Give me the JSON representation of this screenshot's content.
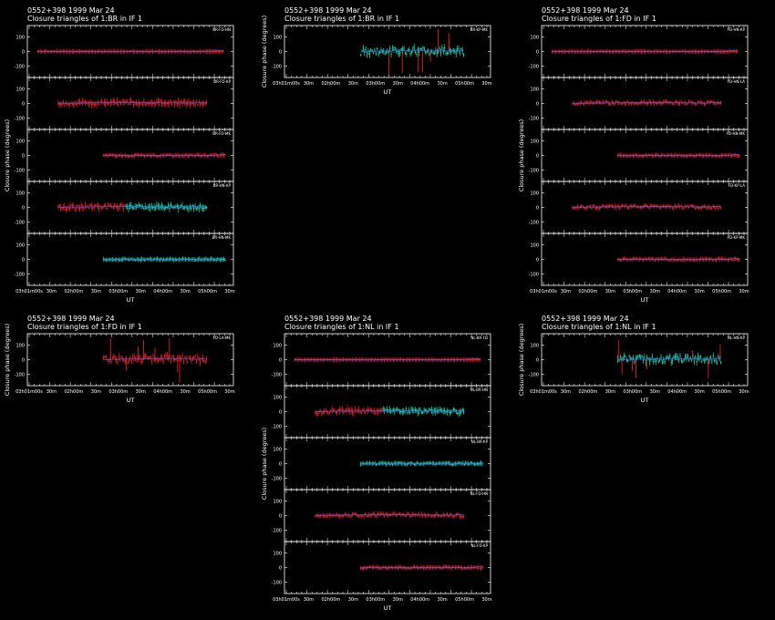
{
  "source": "0552+398",
  "date": "1999 Mar 24",
  "title_prefix": "Closure triangles of",
  "if_label": "in IF 1",
  "ylabel": "Closure phase  (degrees)",
  "xlabel": "UT",
  "x_tick_labels": [
    "03h01m00s",
    "30m",
    "02h00m",
    "30m",
    "03h00m",
    "30m",
    "04h00m",
    "30m",
    "05h00m",
    "30m"
  ],
  "y_tick_labels": [
    "100",
    "0",
    "-100"
  ],
  "colors": {
    "primary": "#ff2020",
    "secondary": "#20e0c0",
    "model": "#3070ff",
    "axes": "#ffffff"
  },
  "chart_data": [
    {
      "type": "scatter",
      "id": "p1",
      "ref_antenna": "1:BR",
      "title": "0552+398  1999 Mar 24",
      "subtitle": "Closure triangles of 1:BR in IF 1",
      "ylabel": "Closure phase  (degrees)",
      "xlabel": "UT",
      "ylim": [
        -180,
        180
      ],
      "xlim": [
        0,
        1
      ],
      "show_title": false,
      "triangles": [
        {
          "label": "BR-FD-HN",
          "x_start": 0.05,
          "x_end": 0.95,
          "y": 0,
          "scatter": 2,
          "color": "primary"
        },
        {
          "label": "BR-FD-KP",
          "x_start": 0.15,
          "x_end": 0.87,
          "y": 0,
          "scatter": 12,
          "color": "primary"
        },
        {
          "label": "BR-FD-MK",
          "x_start": 0.37,
          "x_end": 0.96,
          "y": 0,
          "scatter": 6,
          "color": "primary"
        },
        {
          "label": "BR-HN-KP",
          "x_start": 0.15,
          "x_end": 0.87,
          "y": 0,
          "scatter": 14,
          "color": "mixed"
        },
        {
          "label": "BR-HN-MK",
          "x_start": 0.37,
          "x_end": 0.96,
          "y": 0,
          "scatter": 5,
          "color": "secondary"
        }
      ]
    },
    {
      "type": "scatter",
      "id": "p2",
      "ref_antenna": "1:BR",
      "title": "0552+398  1999 Mar 24",
      "subtitle": "Closure triangles of 1:BR in IF 1",
      "ylabel": "Closure phase  (degrees)",
      "xlabel": "UT",
      "ylim": [
        -180,
        180
      ],
      "xlim": [
        0,
        1
      ],
      "show_title": true,
      "triangles": [
        {
          "label": "BR-KP-MK",
          "x_start": 0.37,
          "x_end": 0.87,
          "y": 0,
          "scatter": 25,
          "color": "secondary"
        }
      ]
    },
    {
      "type": "scatter",
      "id": "p3",
      "ref_antenna": "1:FD",
      "title": "0552+398  1999 Mar 24",
      "subtitle": "Closure triangles of 1:FD in IF 1",
      "ylabel": "Closure phase  (degrees)",
      "xlabel": "UT",
      "ylim": [
        -180,
        180
      ],
      "xlim": [
        0,
        1
      ],
      "show_title": true,
      "triangles": [
        {
          "label": "FD-HN-KP",
          "x_start": 0.05,
          "x_end": 0.95,
          "y": 0,
          "scatter": 2,
          "color": "primary"
        },
        {
          "label": "FD-HN-LA",
          "x_start": 0.15,
          "x_end": 0.87,
          "y": 0,
          "scatter": 10,
          "color": "primary"
        },
        {
          "label": "FD-HN-MK",
          "x_start": 0.37,
          "x_end": 0.96,
          "y": 0,
          "scatter": 5,
          "color": "primary"
        },
        {
          "label": "FD-KP-LA",
          "x_start": 0.15,
          "x_end": 0.87,
          "y": 0,
          "scatter": 10,
          "color": "primary"
        },
        {
          "label": "FD-KP-MK",
          "x_start": 0.37,
          "x_end": 0.96,
          "y": 0,
          "scatter": 6,
          "color": "primary"
        }
      ]
    },
    {
      "type": "scatter",
      "id": "p4",
      "ref_antenna": "1:FD",
      "title": "0552+398  1999 Mar 24",
      "subtitle": "Closure triangles of 1:FD in IF 1",
      "ylabel": "Closure phase  (degrees)",
      "xlabel": "UT",
      "ylim": [
        -180,
        180
      ],
      "xlim": [
        0,
        1
      ],
      "show_title": true,
      "triangles": [
        {
          "label": "FD-LA-MK",
          "x_start": 0.37,
          "x_end": 0.87,
          "y": 0,
          "scatter": 22,
          "color": "primary"
        }
      ]
    },
    {
      "type": "scatter",
      "id": "p5",
      "ref_antenna": "1:NL",
      "title": "0552+398  1999 Mar 24",
      "subtitle": "Closure triangles of 1:NL in IF 1",
      "ylabel": "Closure phase  (degrees)",
      "xlabel": "UT",
      "ylim": [
        -180,
        180
      ],
      "xlim": [
        0,
        1
      ],
      "show_title": true,
      "triangles": [
        {
          "label": "NL-BR-FD",
          "x_start": 0.05,
          "x_end": 0.95,
          "y": 0,
          "scatter": 2,
          "color": "primary"
        },
        {
          "label": "NL-BR-HN",
          "x_start": 0.15,
          "x_end": 0.87,
          "y": 0,
          "scatter": 14,
          "color": "mixed"
        },
        {
          "label": "NL-BR-KP",
          "x_start": 0.37,
          "x_end": 0.96,
          "y": 0,
          "scatter": 6,
          "color": "secondary"
        },
        {
          "label": "NL-FD-HN",
          "x_start": 0.15,
          "x_end": 0.87,
          "y": 0,
          "scatter": 10,
          "color": "primary"
        },
        {
          "label": "NL-FD-KP",
          "x_start": 0.37,
          "x_end": 0.96,
          "y": 0,
          "scatter": 6,
          "color": "primary"
        }
      ]
    },
    {
      "type": "scatter",
      "id": "p6",
      "ref_antenna": "1:NL",
      "title": "0552+398  1999 Mar 24",
      "subtitle": "Closure triangles of 1:NL in IF 1",
      "ylabel": "Closure phase  (degrees)",
      "xlabel": "UT",
      "ylim": [
        -180,
        180
      ],
      "xlim": [
        0,
        1
      ],
      "show_title": true,
      "triangles": [
        {
          "label": "NL-HN-KP",
          "x_start": 0.37,
          "x_end": 0.87,
          "y": 0,
          "scatter": 25,
          "color": "secondary"
        }
      ]
    }
  ]
}
